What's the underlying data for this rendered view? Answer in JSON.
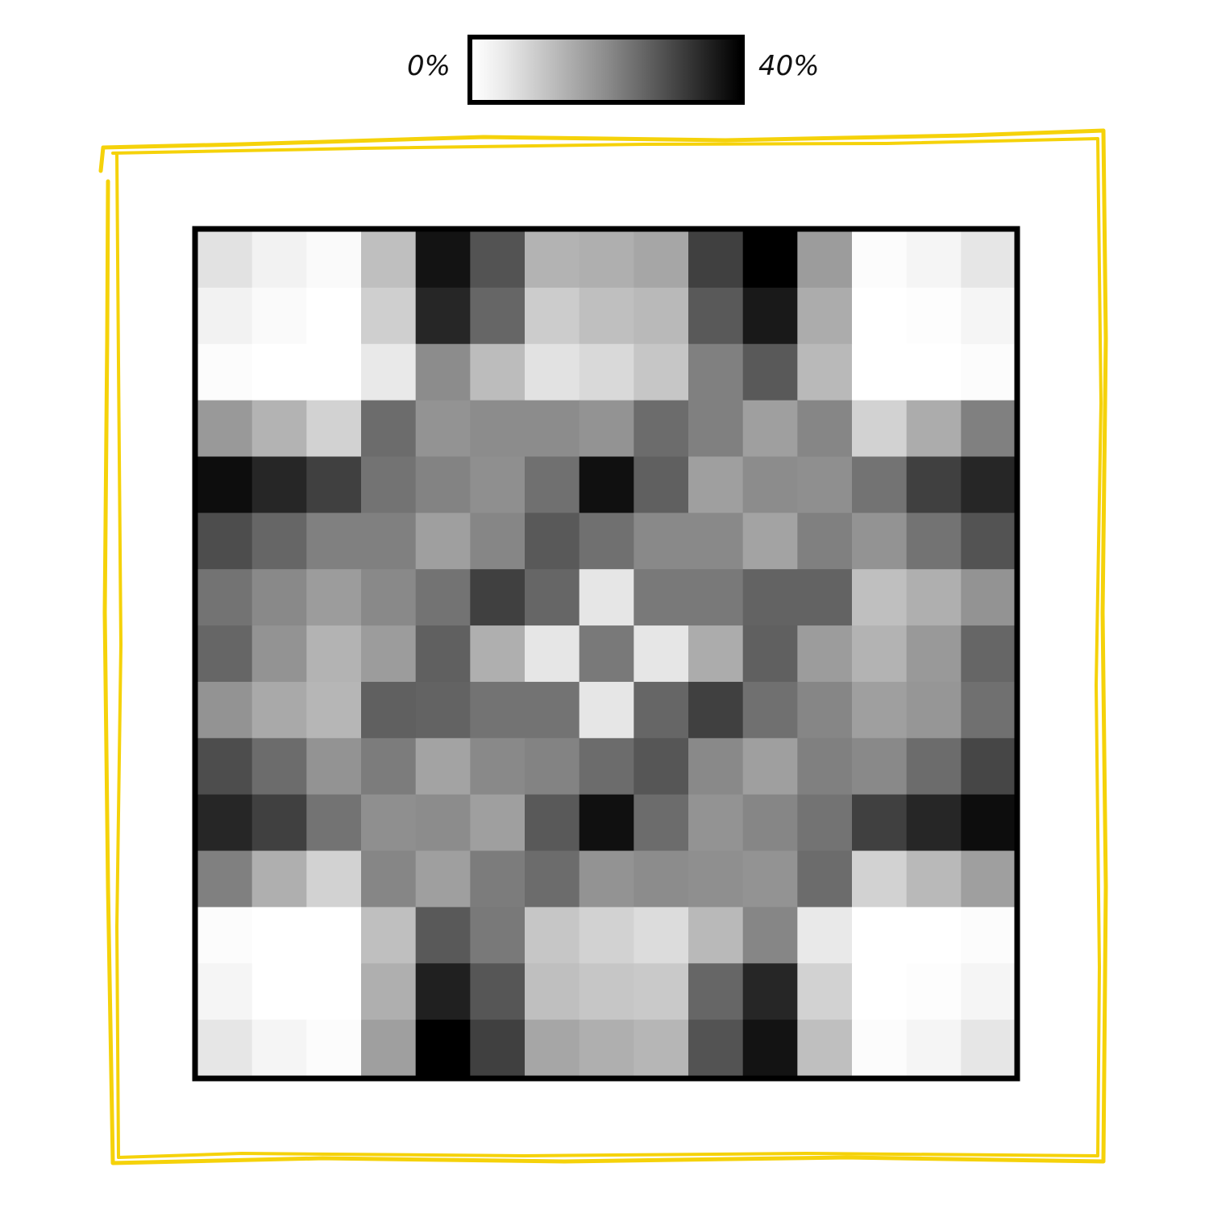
{
  "chart_data": {
    "type": "heatmap",
    "title": "",
    "xlabel": "",
    "ylabel": "",
    "grid": false,
    "legend": {
      "type": "colorbar",
      "placement": "top-center",
      "min_label": "0%",
      "max_label": "40%",
      "range": [
        0,
        40
      ],
      "colors": [
        "#ffffff",
        "#000000"
      ]
    },
    "rows": 15,
    "cols": 15,
    "values": [
      [
        4.5,
        2.0,
        0.8,
        10.0,
        37.0,
        27.0,
        12.0,
        12.5,
        14.0,
        30.0,
        40.0,
        15.5,
        0.5,
        1.5,
        4.0
      ],
      [
        2.0,
        0.8,
        0.0,
        7.5,
        34.0,
        24.0,
        8.0,
        10.0,
        11.0,
        26.0,
        36.0,
        13.0,
        0.0,
        0.3,
        1.5
      ],
      [
        0.5,
        0.0,
        0.0,
        3.5,
        18.0,
        10.5,
        4.5,
        6.0,
        9.0,
        20.0,
        26.0,
        11.0,
        0.0,
        0.0,
        0.5
      ],
      [
        16.0,
        12.0,
        7.0,
        23.0,
        17.0,
        18.0,
        18.0,
        17.0,
        23.0,
        20.0,
        15.0,
        19.0,
        7.0,
        13.0,
        20.0
      ],
      [
        38.0,
        34.0,
        30.0,
        22.0,
        19.5,
        17.5,
        22.5,
        37.5,
        25.0,
        15.0,
        18.0,
        17.5,
        22.0,
        30.0,
        34.0
      ],
      [
        28.0,
        24.0,
        20.0,
        20.0,
        15.0,
        19.0,
        26.0,
        22.5,
        18.5,
        18.5,
        14.5,
        20.0,
        17.0,
        22.0,
        27.0
      ],
      [
        22.0,
        18.5,
        15.5,
        18.5,
        22.0,
        30.0,
        24.0,
        4.0,
        21.0,
        21.0,
        24.5,
        24.5,
        10.0,
        12.5,
        17.0
      ],
      [
        24.0,
        17.0,
        12.0,
        15.5,
        25.0,
        12.5,
        4.0,
        21.0,
        4.0,
        13.0,
        25.0,
        15.5,
        12.0,
        16.0,
        24.0
      ],
      [
        17.0,
        13.5,
        11.5,
        25.0,
        24.5,
        22.0,
        22.0,
        4.0,
        24.0,
        30.0,
        22.5,
        19.0,
        15.0,
        16.5,
        22.5
      ],
      [
        28.0,
        23.0,
        17.0,
        20.5,
        14.5,
        18.5,
        19.5,
        23.0,
        26.5,
        18.5,
        15.0,
        20.0,
        18.5,
        23.0,
        29.0
      ],
      [
        34.0,
        30.0,
        22.0,
        17.5,
        18.0,
        15.0,
        26.0,
        37.5,
        23.0,
        17.0,
        19.0,
        22.0,
        30.0,
        34.0,
        38.0
      ],
      [
        20.0,
        12.5,
        7.0,
        19.0,
        15.0,
        20.5,
        23.0,
        17.0,
        18.0,
        17.5,
        17.0,
        23.0,
        7.0,
        11.0,
        15.0
      ],
      [
        0.5,
        0.0,
        0.0,
        10.0,
        26.0,
        21.0,
        9.0,
        7.0,
        5.5,
        11.0,
        19.0,
        3.5,
        0.0,
        0.0,
        0.5
      ],
      [
        1.5,
        0.0,
        0.0,
        12.5,
        35.0,
        26.5,
        10.0,
        9.0,
        8.5,
        24.0,
        34.0,
        7.0,
        0.0,
        0.3,
        1.5
      ],
      [
        4.0,
        1.5,
        0.5,
        15.0,
        40.0,
        30.0,
        14.0,
        12.5,
        11.5,
        27.0,
        37.0,
        10.0,
        0.5,
        1.5,
        4.0
      ]
    ]
  }
}
